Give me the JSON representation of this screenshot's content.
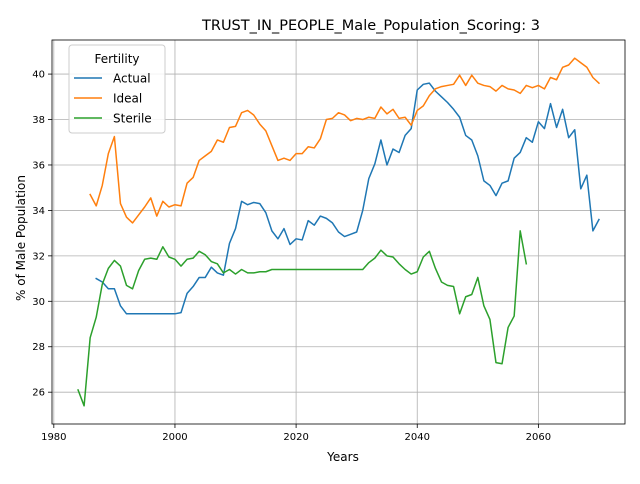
{
  "chart_data": {
    "type": "line",
    "title": "TRUST_IN_PEOPLE_Male_Population_Scoring: 3",
    "xlabel": "Years",
    "ylabel": "% of Male Population",
    "xlim": [
      1979.7,
      2074.3
    ],
    "ylim": [
      24.6,
      41.5
    ],
    "xticks": [
      1980,
      2000,
      2020,
      2040,
      2060
    ],
    "yticks": [
      26,
      28,
      30,
      32,
      34,
      36,
      38,
      40
    ],
    "grid": true,
    "legend": {
      "title": "Fertility",
      "placement": "top-left"
    },
    "series": [
      {
        "name": "Actual",
        "color": "#1f77b4",
        "points": [
          [
            1987,
            31.0
          ],
          [
            1988,
            30.85
          ],
          [
            1989,
            30.55
          ],
          [
            1990,
            30.55
          ],
          [
            1991,
            29.8
          ],
          [
            1992,
            29.45
          ],
          [
            1993,
            29.45
          ],
          [
            1994,
            29.45
          ],
          [
            1995,
            29.45
          ],
          [
            1996,
            29.45
          ],
          [
            1997,
            29.45
          ],
          [
            1998,
            29.45
          ],
          [
            1999,
            29.45
          ],
          [
            2000,
            29.45
          ],
          [
            2001,
            29.5
          ],
          [
            2002,
            30.35
          ],
          [
            2003,
            30.65
          ],
          [
            2004,
            31.05
          ],
          [
            2005,
            31.05
          ],
          [
            2006,
            31.5
          ],
          [
            2007,
            31.25
          ],
          [
            2008,
            31.15
          ],
          [
            2009,
            32.55
          ],
          [
            2010,
            33.2
          ],
          [
            2011,
            34.4
          ],
          [
            2012,
            34.25
          ],
          [
            2013,
            34.35
          ],
          [
            2014,
            34.3
          ],
          [
            2015,
            33.9
          ],
          [
            2016,
            33.1
          ],
          [
            2017,
            32.75
          ],
          [
            2018,
            33.2
          ],
          [
            2019,
            32.5
          ],
          [
            2020,
            32.75
          ],
          [
            2021,
            32.7
          ],
          [
            2022,
            33.55
          ],
          [
            2023,
            33.35
          ],
          [
            2024,
            33.75
          ],
          [
            2025,
            33.65
          ],
          [
            2026,
            33.45
          ],
          [
            2027,
            33.05
          ],
          [
            2028,
            32.85
          ],
          [
            2029,
            32.95
          ],
          [
            2030,
            33.05
          ],
          [
            2031,
            34.0
          ],
          [
            2032,
            35.4
          ],
          [
            2033,
            36.05
          ],
          [
            2034,
            37.1
          ],
          [
            2035,
            36.0
          ],
          [
            2036,
            36.7
          ],
          [
            2037,
            36.55
          ],
          [
            2038,
            37.3
          ],
          [
            2039,
            37.6
          ],
          [
            2040,
            39.3
          ],
          [
            2041,
            39.55
          ],
          [
            2042,
            39.6
          ],
          [
            2043,
            39.25
          ],
          [
            2044,
            39.0
          ],
          [
            2045,
            38.75
          ],
          [
            2046,
            38.45
          ],
          [
            2047,
            38.1
          ],
          [
            2048,
            37.3
          ],
          [
            2049,
            37.1
          ],
          [
            2050,
            36.4
          ],
          [
            2051,
            35.3
          ],
          [
            2052,
            35.1
          ],
          [
            2053,
            34.65
          ],
          [
            2054,
            35.2
          ],
          [
            2055,
            35.3
          ],
          [
            2056,
            36.3
          ],
          [
            2057,
            36.55
          ],
          [
            2058,
            37.2
          ],
          [
            2059,
            37.0
          ],
          [
            2060,
            37.9
          ],
          [
            2061,
            37.6
          ],
          [
            2062,
            38.7
          ],
          [
            2063,
            37.65
          ],
          [
            2064,
            38.45
          ],
          [
            2065,
            37.2
          ],
          [
            2066,
            37.55
          ],
          [
            2067,
            34.95
          ],
          [
            2068,
            35.55
          ],
          [
            2069,
            33.1
          ],
          [
            2070,
            33.6
          ]
        ]
      },
      {
        "name": "Ideal",
        "color": "#ff7f0e",
        "points": [
          [
            1986,
            34.7
          ],
          [
            1987,
            34.2
          ],
          [
            1988,
            35.1
          ],
          [
            1989,
            36.5
          ],
          [
            1990,
            37.25
          ],
          [
            1991,
            34.3
          ],
          [
            1992,
            33.7
          ],
          [
            1993,
            33.45
          ],
          [
            1994,
            33.8
          ],
          [
            1995,
            34.15
          ],
          [
            1996,
            34.55
          ],
          [
            1997,
            33.75
          ],
          [
            1998,
            34.4
          ],
          [
            1999,
            34.15
          ],
          [
            2000,
            34.25
          ],
          [
            2001,
            34.2
          ],
          [
            2002,
            35.2
          ],
          [
            2003,
            35.45
          ],
          [
            2004,
            36.2
          ],
          [
            2005,
            36.4
          ],
          [
            2006,
            36.6
          ],
          [
            2007,
            37.1
          ],
          [
            2008,
            37.0
          ],
          [
            2009,
            37.65
          ],
          [
            2010,
            37.7
          ],
          [
            2011,
            38.3
          ],
          [
            2012,
            38.4
          ],
          [
            2013,
            38.2
          ],
          [
            2014,
            37.8
          ],
          [
            2015,
            37.5
          ],
          [
            2016,
            36.85
          ],
          [
            2017,
            36.2
          ],
          [
            2018,
            36.3
          ],
          [
            2019,
            36.2
          ],
          [
            2020,
            36.5
          ],
          [
            2021,
            36.5
          ],
          [
            2022,
            36.8
          ],
          [
            2023,
            36.75
          ],
          [
            2024,
            37.15
          ],
          [
            2025,
            38.0
          ],
          [
            2026,
            38.05
          ],
          [
            2027,
            38.3
          ],
          [
            2028,
            38.2
          ],
          [
            2029,
            37.95
          ],
          [
            2030,
            38.05
          ],
          [
            2031,
            38.0
          ],
          [
            2032,
            38.1
          ],
          [
            2033,
            38.05
          ],
          [
            2034,
            38.55
          ],
          [
            2035,
            38.25
          ],
          [
            2036,
            38.45
          ],
          [
            2037,
            38.05
          ],
          [
            2038,
            38.1
          ],
          [
            2039,
            37.75
          ],
          [
            2040,
            38.4
          ],
          [
            2041,
            38.6
          ],
          [
            2042,
            39.05
          ],
          [
            2043,
            39.35
          ],
          [
            2044,
            39.45
          ],
          [
            2045,
            39.5
          ],
          [
            2046,
            39.55
          ],
          [
            2047,
            39.95
          ],
          [
            2048,
            39.5
          ],
          [
            2049,
            39.95
          ],
          [
            2050,
            39.6
          ],
          [
            2051,
            39.5
          ],
          [
            2052,
            39.45
          ],
          [
            2053,
            39.25
          ],
          [
            2054,
            39.5
          ],
          [
            2055,
            39.35
          ],
          [
            2056,
            39.3
          ],
          [
            2057,
            39.15
          ],
          [
            2058,
            39.5
          ],
          [
            2059,
            39.4
          ],
          [
            2060,
            39.5
          ],
          [
            2061,
            39.35
          ],
          [
            2062,
            39.85
          ],
          [
            2063,
            39.75
          ],
          [
            2064,
            40.3
          ],
          [
            2065,
            40.4
          ],
          [
            2066,
            40.7
          ],
          [
            2067,
            40.5
          ],
          [
            2068,
            40.3
          ],
          [
            2069,
            39.85
          ],
          [
            2070,
            39.6
          ]
        ]
      },
      {
        "name": "Sterile",
        "color": "#2ca02c",
        "points": [
          [
            1984,
            26.1
          ],
          [
            1985,
            25.4
          ],
          [
            1986,
            28.4
          ],
          [
            1987,
            29.3
          ],
          [
            1988,
            30.75
          ],
          [
            1989,
            31.45
          ],
          [
            1990,
            31.8
          ],
          [
            1991,
            31.55
          ],
          [
            1992,
            30.7
          ],
          [
            1993,
            30.55
          ],
          [
            1994,
            31.35
          ],
          [
            1995,
            31.85
          ],
          [
            1996,
            31.9
          ],
          [
            1997,
            31.85
          ],
          [
            1998,
            32.4
          ],
          [
            1999,
            31.95
          ],
          [
            2000,
            31.85
          ],
          [
            2001,
            31.55
          ],
          [
            2002,
            31.85
          ],
          [
            2003,
            31.9
          ],
          [
            2004,
            32.2
          ],
          [
            2005,
            32.05
          ],
          [
            2006,
            31.75
          ],
          [
            2007,
            31.65
          ],
          [
            2008,
            31.25
          ],
          [
            2009,
            31.4
          ],
          [
            2010,
            31.2
          ],
          [
            2011,
            31.4
          ],
          [
            2012,
            31.25
          ],
          [
            2013,
            31.25
          ],
          [
            2014,
            31.3
          ],
          [
            2015,
            31.3
          ],
          [
            2016,
            31.4
          ],
          [
            2017,
            31.4
          ],
          [
            2018,
            31.4
          ],
          [
            2019,
            31.4
          ],
          [
            2020,
            31.4
          ],
          [
            2021,
            31.4
          ],
          [
            2022,
            31.4
          ],
          [
            2023,
            31.4
          ],
          [
            2024,
            31.4
          ],
          [
            2025,
            31.4
          ],
          [
            2026,
            31.4
          ],
          [
            2027,
            31.4
          ],
          [
            2028,
            31.4
          ],
          [
            2029,
            31.4
          ],
          [
            2030,
            31.4
          ],
          [
            2031,
            31.4
          ],
          [
            2032,
            31.7
          ],
          [
            2033,
            31.9
          ],
          [
            2034,
            32.25
          ],
          [
            2035,
            32.0
          ],
          [
            2036,
            31.95
          ],
          [
            2037,
            31.65
          ],
          [
            2038,
            31.4
          ],
          [
            2039,
            31.2
          ],
          [
            2040,
            31.3
          ],
          [
            2041,
            31.95
          ],
          [
            2042,
            32.2
          ],
          [
            2043,
            31.45
          ],
          [
            2044,
            30.85
          ],
          [
            2045,
            30.7
          ],
          [
            2046,
            30.65
          ],
          [
            2047,
            29.45
          ],
          [
            2048,
            30.2
          ],
          [
            2049,
            30.3
          ],
          [
            2050,
            31.05
          ],
          [
            2051,
            29.8
          ],
          [
            2052,
            29.2
          ],
          [
            2053,
            27.3
          ],
          [
            2054,
            27.25
          ],
          [
            2055,
            28.85
          ],
          [
            2056,
            29.35
          ],
          [
            2057,
            33.1
          ],
          [
            2058,
            31.65
          ]
        ]
      }
    ]
  }
}
